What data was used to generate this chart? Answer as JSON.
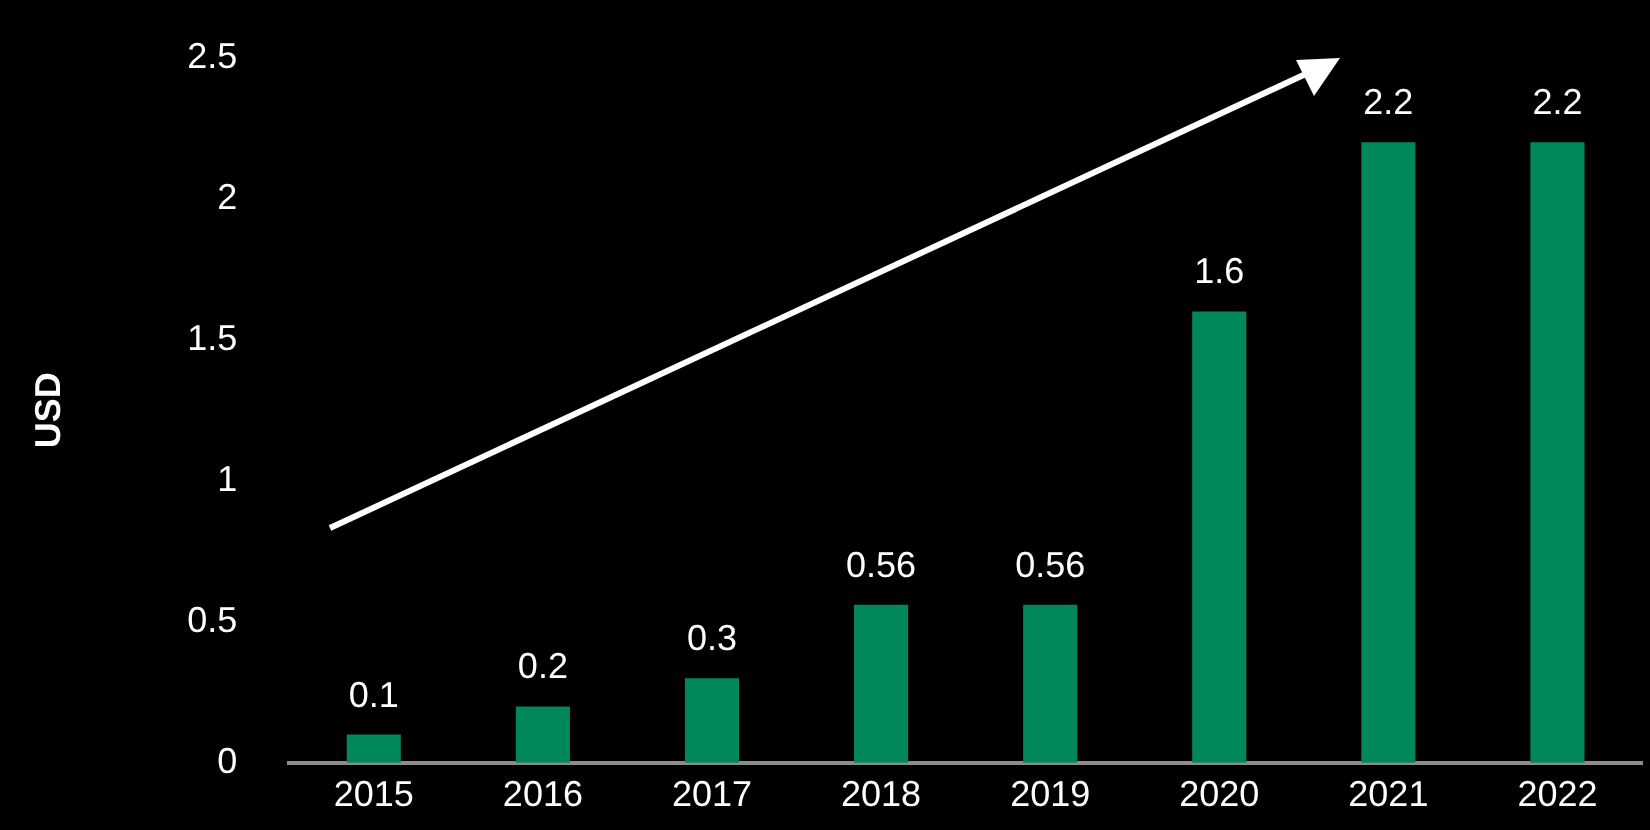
{
  "chart_data": {
    "type": "bar",
    "ylabel": "USD",
    "categories": [
      "2015",
      "2016",
      "2017",
      "2018",
      "2019",
      "2020",
      "2021",
      "2022"
    ],
    "values": [
      0.1,
      0.2,
      0.3,
      0.56,
      0.56,
      1.6,
      2.2,
      2.2
    ],
    "color": "#00875a",
    "ylim": [
      0,
      2.5
    ],
    "yticks": [
      0,
      0.5,
      1,
      1.5,
      2,
      2.5
    ],
    "grid": false,
    "legend": false,
    "data_labels": true
  }
}
